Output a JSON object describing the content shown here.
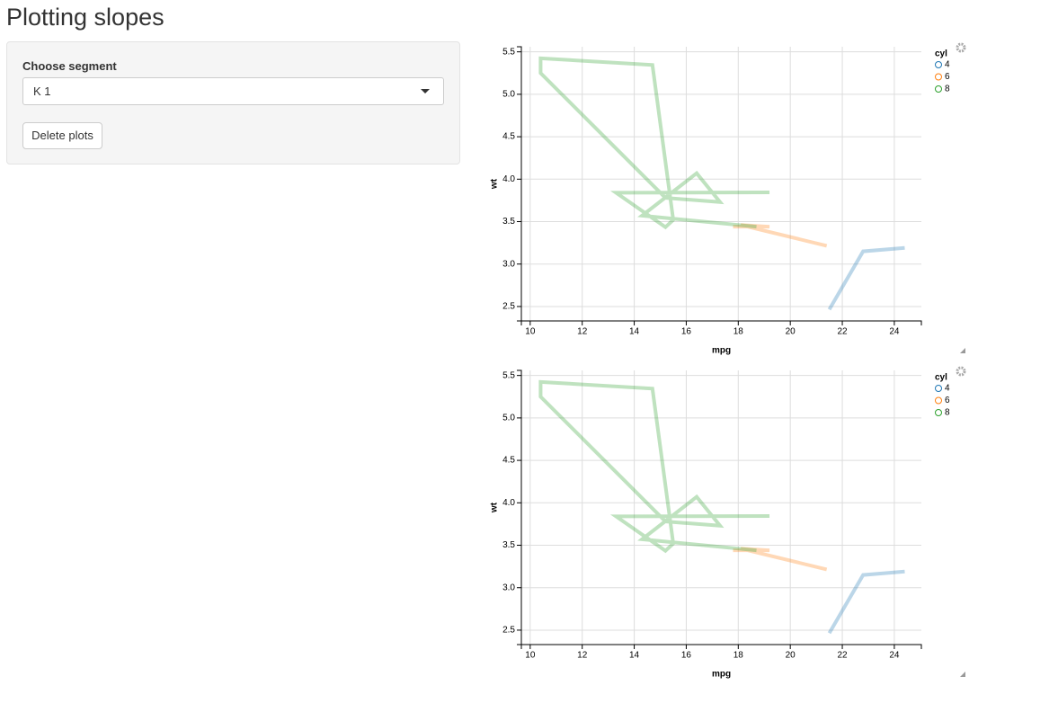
{
  "page": {
    "title": "Plotting slopes",
    "label": "Choose segment",
    "selected": "K 1",
    "button": "Delete plots"
  },
  "chart_data": [
    {
      "type": "line",
      "x_label": "mpg",
      "y_label": "wt",
      "legend_title": "cyl",
      "legend": "top-right",
      "xlim": [
        9.66,
        25.04
      ],
      "ylim": [
        2.33,
        5.56
      ],
      "grid": true,
      "xticks": [
        10,
        12,
        14,
        16,
        18,
        20,
        22,
        24
      ],
      "yticks": [
        2.5,
        {
          "value": 3,
          "label": "3.0"
        },
        3.5,
        {
          "value": 4,
          "label": "4.0"
        },
        4.5,
        {
          "value": 5,
          "label": "5.0"
        },
        5.5
      ],
      "series": [
        {
          "name": "4",
          "color": "#1f77b4",
          "x": [
            21.5,
            22.8,
            24.4
          ],
          "values": [
            2.465,
            3.15,
            3.19
          ]
        },
        {
          "name": "6",
          "color": "#ff7f0e",
          "x": [
            21.4,
            18.1,
            19.2,
            17.8
          ],
          "values": [
            3.215,
            3.46,
            3.44,
            3.44
          ]
        },
        {
          "name": "8",
          "color": "#2ca02c",
          "x": [
            18.7,
            14.3,
            16.4,
            17.3,
            15.2,
            10.4,
            10.4,
            14.7,
            15.5,
            15.2,
            13.3,
            19.2
          ],
          "values": [
            3.44,
            3.57,
            4.07,
            3.73,
            3.78,
            5.25,
            5.424,
            5.345,
            3.52,
            3.435,
            3.84,
            3.845
          ]
        }
      ]
    },
    {
      "type": "line",
      "x_label": "mpg",
      "y_label": "wt",
      "legend_title": "cyl",
      "legend": "top-right",
      "xlim": [
        9.66,
        25.04
      ],
      "ylim": [
        2.33,
        5.56
      ],
      "grid": true,
      "xticks": [
        10,
        12,
        14,
        16,
        18,
        20,
        22,
        24
      ],
      "yticks": [
        2.5,
        {
          "value": 3,
          "label": "3.0"
        },
        3.5,
        {
          "value": 4,
          "label": "4.0"
        },
        4.5,
        {
          "value": 5,
          "label": "5.0"
        },
        5.5
      ],
      "series": [
        {
          "name": "4",
          "color": "#1f77b4",
          "x": [
            21.5,
            22.8,
            24.4
          ],
          "values": [
            2.465,
            3.15,
            3.19
          ]
        },
        {
          "name": "6",
          "color": "#ff7f0e",
          "x": [
            21.4,
            18.1,
            19.2,
            17.8
          ],
          "values": [
            3.215,
            3.46,
            3.44,
            3.44
          ]
        },
        {
          "name": "8",
          "color": "#2ca02c",
          "x": [
            18.7,
            14.3,
            16.4,
            17.3,
            15.2,
            10.4,
            10.4,
            14.7,
            15.5,
            15.2,
            13.3,
            19.2
          ],
          "values": [
            3.44,
            3.57,
            4.07,
            3.73,
            3.78,
            5.25,
            5.424,
            5.345,
            3.52,
            3.435,
            3.84,
            3.845
          ]
        }
      ]
    }
  ]
}
